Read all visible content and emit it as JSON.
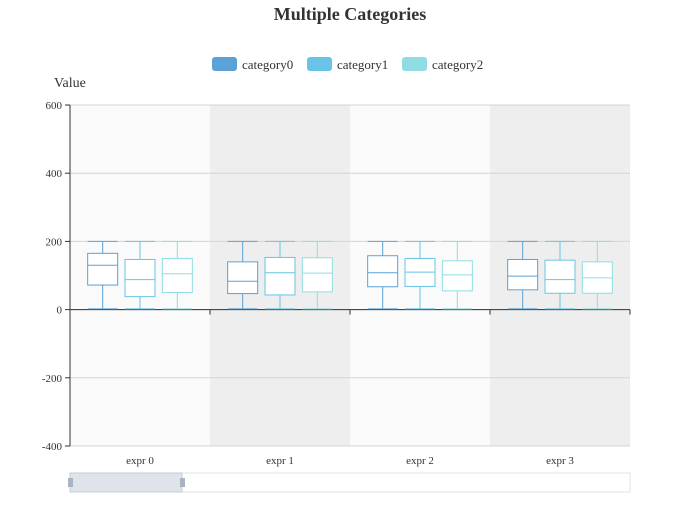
{
  "chart_data": {
    "type": "boxplot",
    "title": "Multiple Categories",
    "ylabel": "Value",
    "xlabel": "",
    "ylim": [
      -400,
      600
    ],
    "yticks": [
      600,
      400,
      200,
      0,
      -200,
      -400
    ],
    "categories": [
      "expr 0",
      "expr 1",
      "expr 2",
      "expr 3"
    ],
    "series": [
      {
        "name": "category0",
        "color": "#5aa2d8",
        "boxes": [
          {
            "min": 2,
            "q1": 72,
            "median": 130,
            "q3": 165,
            "max": 200
          },
          {
            "min": 2,
            "q1": 47,
            "median": 83,
            "q3": 140,
            "max": 200
          },
          {
            "min": 2,
            "q1": 67,
            "median": 108,
            "q3": 158,
            "max": 200
          },
          {
            "min": 2,
            "q1": 58,
            "median": 98,
            "q3": 147,
            "max": 200
          }
        ]
      },
      {
        "name": "category1",
        "color": "#67c4e6",
        "boxes": [
          {
            "min": 2,
            "q1": 38,
            "median": 88,
            "q3": 147,
            "max": 200
          },
          {
            "min": 2,
            "q1": 43,
            "median": 108,
            "q3": 153,
            "max": 200
          },
          {
            "min": 2,
            "q1": 68,
            "median": 110,
            "q3": 150,
            "max": 200
          },
          {
            "min": 2,
            "q1": 48,
            "median": 88,
            "q3": 145,
            "max": 200
          }
        ]
      },
      {
        "name": "category2",
        "color": "#8fdde2",
        "boxes": [
          {
            "min": 2,
            "q1": 50,
            "median": 105,
            "q3": 150,
            "max": 200
          },
          {
            "min": 2,
            "q1": 52,
            "median": 107,
            "q3": 152,
            "max": 200
          },
          {
            "min": 2,
            "q1": 55,
            "median": 102,
            "q3": 143,
            "max": 200
          },
          {
            "min": 2,
            "q1": 48,
            "median": 93,
            "q3": 140,
            "max": 200
          }
        ]
      }
    ],
    "grid": true,
    "legend_position": "top-center",
    "band_colors": [
      "#fafafa",
      "#eeeeee"
    ],
    "datazoom": {
      "start": 0,
      "end": 20
    }
  }
}
